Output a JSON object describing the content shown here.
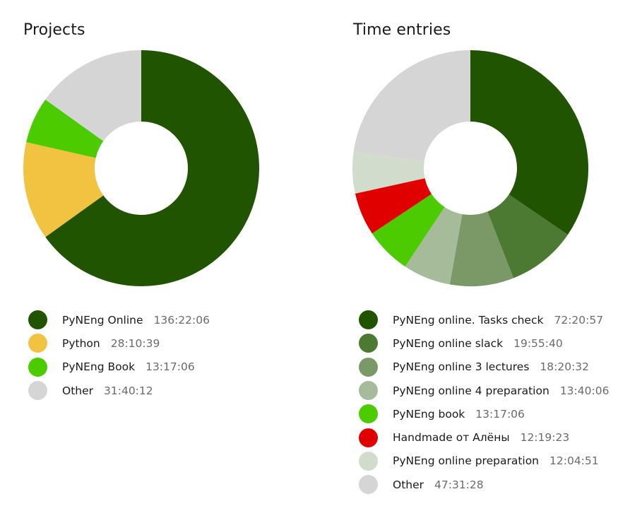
{
  "chart_data": [
    {
      "type": "pie",
      "title": "Projects",
      "donut": true,
      "legend_position": "bottom",
      "slices": [
        {
          "label": "PyNEng Online",
          "duration": "136:22:06",
          "value": 136.368,
          "color": "#215400"
        },
        {
          "label": "Python",
          "duration": "28:10:39",
          "value": 28.178,
          "color": "#f2c241"
        },
        {
          "label": "PyNEng Book",
          "duration": "13:17:06",
          "value": 13.285,
          "color": "#4ccc00"
        },
        {
          "label": "Other",
          "duration": "31:40:12",
          "value": 31.67,
          "color": "#d5d5d5"
        }
      ]
    },
    {
      "type": "pie",
      "title": "Time entries",
      "donut": true,
      "legend_position": "bottom",
      "slices": [
        {
          "label": "PyNEng online. Tasks check",
          "duration": "72:20:57",
          "value": 72.349,
          "color": "#215400"
        },
        {
          "label": "PyNEng online slack",
          "duration": "19:55:40",
          "value": 19.928,
          "color": "#4d7a33"
        },
        {
          "label": "PyNEng online 3 lectures",
          "duration": "18:20:32",
          "value": 18.342,
          "color": "#7a9966"
        },
        {
          "label": "PyNEng online 4 preparation",
          "duration": "13:40:06",
          "value": 13.668,
          "color": "#a6bb99"
        },
        {
          "label": "PyNEng book",
          "duration": "13:17:06",
          "value": 13.285,
          "color": "#4ccc00"
        },
        {
          "label": "Handmade от Алёны",
          "duration": "12:19:23",
          "value": 12.323,
          "color": "#e00000"
        },
        {
          "label": "PyNEng online preparation",
          "duration": "12:04:51",
          "value": 12.081,
          "color": "#d2dccc"
        },
        {
          "label": "Other",
          "duration": "47:31:28",
          "value": 47.524,
          "color": "#d5d5d5"
        }
      ]
    }
  ]
}
